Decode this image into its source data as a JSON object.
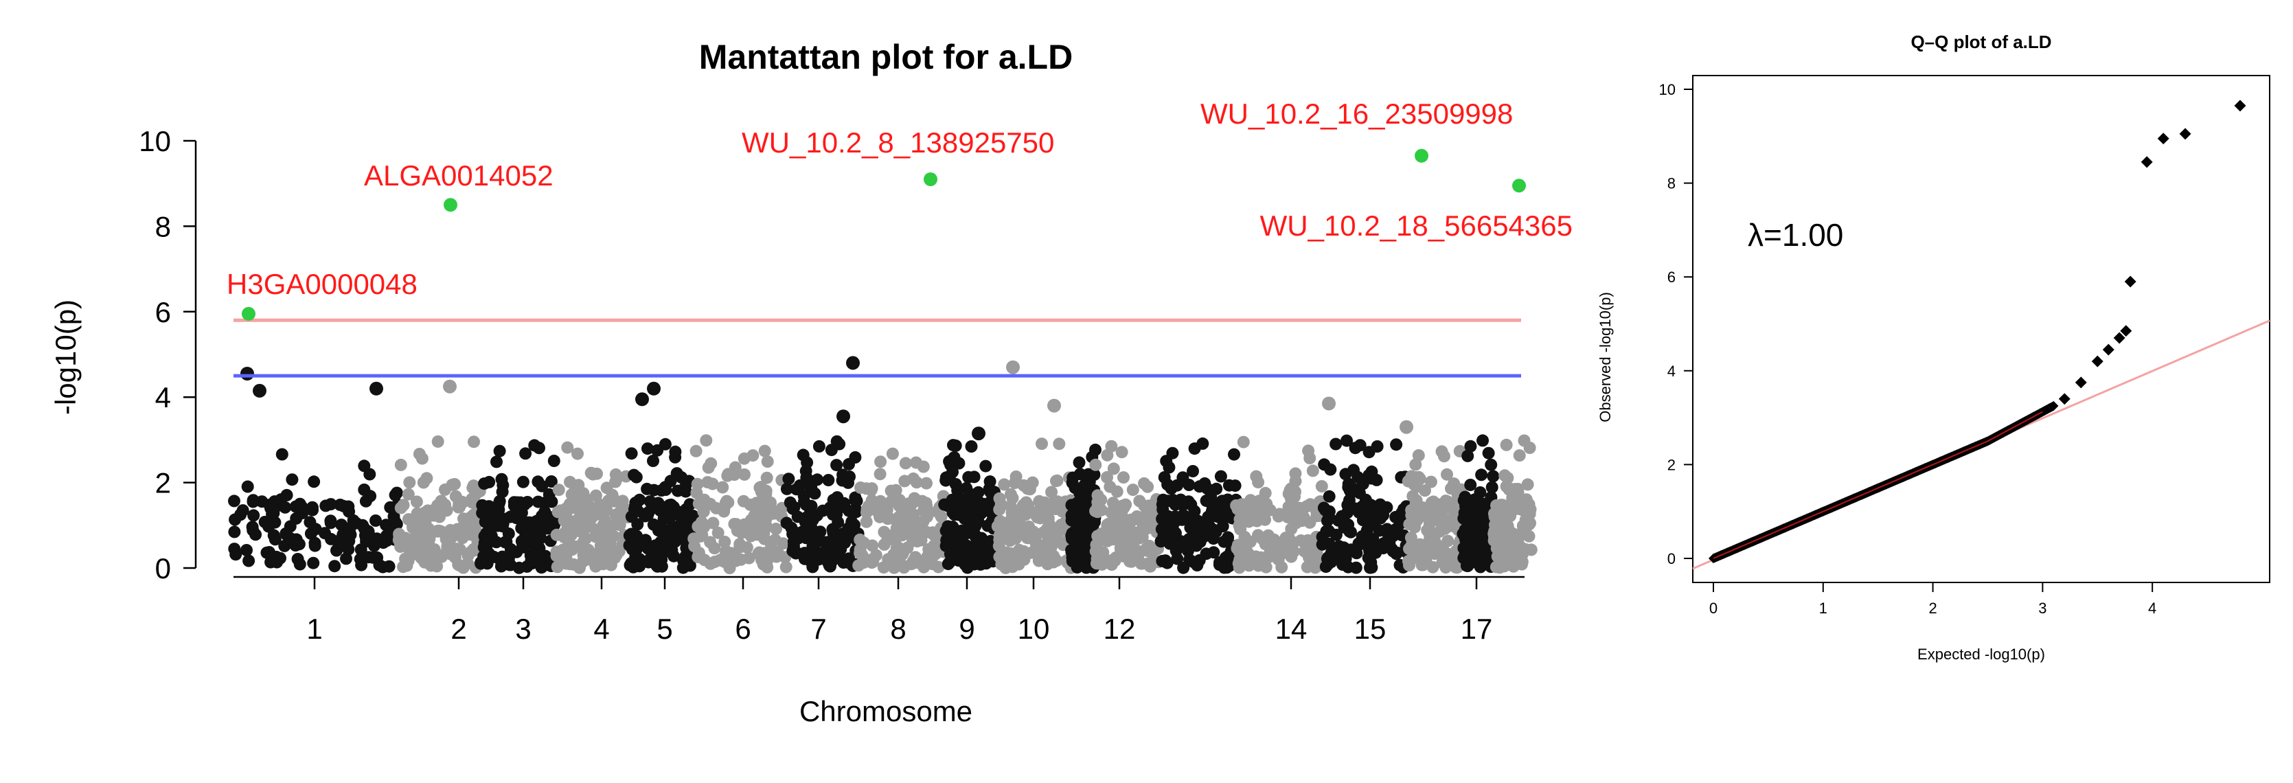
{
  "chart_data": [
    {
      "type": "scatter",
      "title": "Mantattan plot for a.LD",
      "xlabel": "Chromosome",
      "ylabel": "-log10(p)",
      "ylim": [
        0,
        10
      ],
      "yticks": [
        0,
        2,
        4,
        6,
        8,
        10
      ],
      "chromosome_ticks": [
        "1",
        "2",
        "3",
        "4",
        "5",
        "6",
        "7",
        "8",
        "9",
        "10",
        "12",
        "14",
        "15",
        "17"
      ],
      "thresholds": [
        {
          "value": 5.8,
          "color": "#f4a3a3"
        },
        {
          "value": 4.5,
          "color": "#5b63ff"
        }
      ],
      "colors": {
        "odd": "#111111",
        "even": "#9b9b9b",
        "highlight": "#2ecc40",
        "label": "#ff1a1a"
      },
      "significant_snps": [
        {
          "label": "H3GA0000048",
          "chromosome": 1,
          "value": 5.95
        },
        {
          "label": "ALGA0014052",
          "chromosome": 2,
          "value": 8.5
        },
        {
          "label": "WU_10.2_8_138925750",
          "chromosome": 8,
          "value": 9.1
        },
        {
          "label": "WU_10.2_16_23509998",
          "chromosome": 16,
          "value": 9.65
        },
        {
          "label": "WU_10.2_18_56654365",
          "chromosome": 18,
          "value": 8.95
        }
      ],
      "notable_points": [
        {
          "chromosome": 1,
          "value": 4.55
        },
        {
          "chromosome": 1,
          "value": 4.15
        },
        {
          "chromosome": 1,
          "value": 4.2
        },
        {
          "chromosome": 2,
          "value": 4.25
        },
        {
          "chromosome": 5,
          "value": 4.2
        },
        {
          "chromosome": 5,
          "value": 3.95
        },
        {
          "chromosome": 7,
          "value": 4.8
        },
        {
          "chromosome": 7,
          "value": 3.55
        },
        {
          "chromosome": 9,
          "value": 3.15
        },
        {
          "chromosome": 10,
          "value": 4.7
        },
        {
          "chromosome": 10,
          "value": 3.8
        },
        {
          "chromosome": 14,
          "value": 3.85
        },
        {
          "chromosome": 16,
          "value": 3.3
        }
      ]
    },
    {
      "type": "scatter",
      "title": "Q–Q plot of a.LD",
      "xlabel": "Expected -log10(p)",
      "ylabel": "Observed -log10(p)",
      "xlim": [
        0,
        4.85
      ],
      "ylim": [
        0,
        10
      ],
      "xticks": [
        0,
        1,
        2,
        3,
        4
      ],
      "yticks": [
        0,
        2,
        4,
        6,
        8,
        10
      ],
      "annotation": "λ=1.00",
      "expected_line_color": "#f4a3a3",
      "tail_points": [
        {
          "x": 3.2,
          "y": 3.4
        },
        {
          "x": 3.35,
          "y": 3.75
        },
        {
          "x": 3.5,
          "y": 4.2
        },
        {
          "x": 3.6,
          "y": 4.45
        },
        {
          "x": 3.7,
          "y": 4.7
        },
        {
          "x": 3.76,
          "y": 4.85
        },
        {
          "x": 3.8,
          "y": 5.9
        },
        {
          "x": 3.95,
          "y": 8.45
        },
        {
          "x": 4.1,
          "y": 8.95
        },
        {
          "x": 4.3,
          "y": 9.05
        },
        {
          "x": 4.8,
          "y": 9.65
        }
      ]
    }
  ]
}
